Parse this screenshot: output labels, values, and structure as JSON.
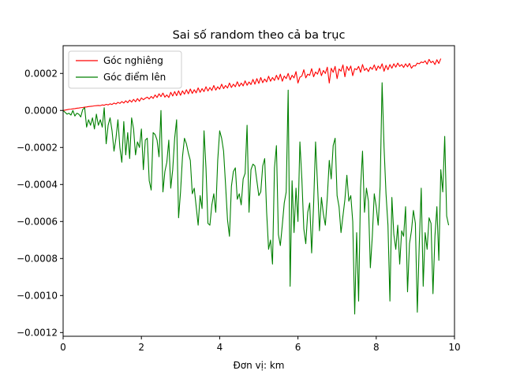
{
  "chart_data": {
    "type": "line",
    "title": "Sai số random theo cả ba trục",
    "xlabel": "Đơn vị: km",
    "ylabel": "",
    "xlim": [
      0,
      10
    ],
    "ylim": [
      -0.00122,
      0.00035
    ],
    "x_ticks": [
      0,
      2,
      4,
      6,
      8,
      10
    ],
    "x_tick_labels": [
      "0",
      "2",
      "4",
      "6",
      "8",
      "10"
    ],
    "y_ticks": [
      0.0002,
      0.0,
      -0.0002,
      -0.0004,
      -0.0006,
      -0.0008,
      -0.001,
      -0.0012
    ],
    "y_tick_labels": [
      "0.0002",
      "0.0000",
      "−0.0002",
      "−0.0004",
      "−0.0006",
      "−0.0008",
      "−0.0010",
      "−0.0012"
    ],
    "grid": false,
    "legend": "upper-left",
    "x_step": 0.05,
    "series": [
      {
        "name": "Góc nghiêng",
        "color": "#ff0000",
        "values": [
          0.0,
          2e-06,
          4e-06,
          6e-06,
          7e-06,
          9e-06,
          1e-05,
          1.2e-05,
          1.3e-05,
          1.5e-05,
          1.6e-05,
          1.8e-05,
          1.9e-05,
          2.1e-05,
          2.2e-05,
          2.3e-05,
          2.5e-05,
          2.6e-05,
          2.7e-05,
          2.6e-05,
          3e-05,
          2.8e-05,
          3.3e-05,
          3e-05,
          3.6e-05,
          3.2e-05,
          4e-05,
          3.5e-05,
          4.4e-05,
          3.8e-05,
          4.8e-05,
          4e-05,
          5.2e-05,
          4.2e-05,
          5.6e-05,
          4.5e-05,
          6e-05,
          4.7e-05,
          6.4e-05,
          5e-05,
          6.8e-05,
          5.8e-05,
          6.6e-05,
          7.2e-05,
          6.2e-05,
          7.6e-05,
          6.5e-05,
          8.4e-05,
          7e-05,
          9e-05,
          7.5e-05,
          9.4e-05,
          7.2e-05,
          8.4e-05,
          7e-05,
          9.8e-05,
          7.8e-05,
          0.000102,
          8e-05,
          0.000106,
          8.2e-05,
          0.000106,
          8.8e-05,
          0.000112,
          9e-05,
          0.000116,
          9.2e-05,
          0.000112,
          9.5e-05,
          0.000122,
          9.8e-05,
          0.000118,
          0.000102,
          0.000128,
          0.000105,
          0.000124,
          0.000108,
          0.000135,
          0.00011,
          0.000128,
          0.000115,
          0.000142,
          0.000118,
          0.000135,
          0.000121,
          0.000148,
          0.000124,
          0.000142,
          0.000128,
          0.000155,
          0.00013,
          0.000148,
          0.000133,
          0.00016,
          0.000136,
          0.000154,
          0.00014,
          0.000168,
          0.000142,
          0.000172,
          0.000146,
          0.000178,
          0.00015,
          0.00017,
          0.000154,
          0.000185,
          0.000158,
          0.000178,
          0.000162,
          0.00019,
          0.000166,
          0.000196,
          0.000158,
          0.000186,
          0.000172,
          0.0002,
          0.000165,
          0.00019,
          0.000176,
          0.00021,
          0.000148,
          0.00018,
          0.000186,
          0.00022,
          0.000176,
          0.000196,
          0.00019,
          0.000226,
          0.000182,
          0.000208,
          0.000196,
          0.000228,
          0.000188,
          0.000216,
          0.0002,
          0.000234,
          0.000148,
          0.000228,
          0.000206,
          0.000238,
          0.000172,
          0.000224,
          0.000212,
          0.000246,
          0.000182,
          0.000238,
          0.000216,
          0.00024,
          0.000188,
          0.000226,
          0.00022,
          0.000238,
          0.000206,
          0.000248,
          0.000216,
          0.000228,
          0.00021,
          0.000234,
          0.000222,
          0.000246,
          0.000216,
          0.00024,
          0.000226,
          0.000252,
          0.000212,
          0.000244,
          0.00022,
          0.000248,
          0.000228,
          0.000252,
          0.000234,
          0.000256,
          0.000238,
          0.000248,
          0.000232,
          0.000252,
          0.000236,
          0.000254,
          0.000228,
          0.000242,
          0.00024,
          0.000256,
          0.000252,
          0.000262,
          0.000258,
          0.000268,
          0.00025,
          0.000276,
          0.000258,
          0.000266,
          0.000248,
          0.000274,
          0.000254,
          0.00028
        ]
      },
      {
        "name": "Góc điểm lên",
        "color": "#008000",
        "values": [
          0.0,
          -1e-05,
          -2e-05,
          -1.5e-05,
          -2.5e-05,
          0.0,
          -3e-05,
          -1.5e-05,
          -2e-05,
          -3.5e-05,
          5e-06,
          1.5e-05,
          -9e-05,
          -5e-05,
          -8e-05,
          -4e-05,
          -0.0001,
          -2e-05,
          -8e-05,
          -5e-05,
          -9e-05,
          1.5e-05,
          -0.00018,
          -8e-05,
          -4e-05,
          -0.00011,
          -0.00022,
          -0.00015,
          -5e-05,
          -0.0002,
          -0.00028,
          -6e-05,
          -0.00024,
          -0.00012,
          -0.00026,
          -4e-05,
          -0.0001,
          -0.00024,
          -0.00017,
          -0.0002,
          -0.0001,
          -0.00032,
          -0.00016,
          -0.00015,
          -0.00038,
          -0.00043,
          -0.00012,
          -0.00013,
          -0.00016,
          -0.00025,
          0.0,
          -0.00044,
          -0.00033,
          -0.00028,
          -0.00016,
          -0.00042,
          -0.00032,
          -0.00015,
          -5e-05,
          -0.00058,
          -0.00044,
          -0.00025,
          -0.00015,
          -0.00018,
          -0.00023,
          -0.00027,
          -0.00045,
          -0.00042,
          -0.00052,
          -0.00062,
          -0.00046,
          -0.00053,
          -0.00011,
          -0.00031,
          -0.00061,
          -0.00062,
          -0.00051,
          -0.00045,
          -0.00055,
          -0.00027,
          -0.00011,
          -0.00015,
          -0.00022,
          -0.0004,
          -0.00059,
          -0.00068,
          -0.00041,
          -0.00033,
          -0.00031,
          -0.00048,
          -0.00045,
          -0.00051,
          -0.00037,
          -0.00034,
          -8e-05,
          -0.00055,
          -0.00032,
          -0.00029,
          -0.0003,
          -0.00038,
          -0.00046,
          -0.00044,
          -0.0003,
          -0.00026,
          -0.00055,
          -0.00075,
          -0.0007,
          -0.00083,
          -0.00031,
          -0.00019,
          -0.00067,
          -0.00073,
          -0.00062,
          -0.0005,
          -0.00044,
          0.00011,
          -0.00095,
          -0.00038,
          -0.00066,
          -0.00042,
          -0.0006,
          -0.00017,
          -0.00037,
          -0.00064,
          -0.00072,
          -0.00055,
          -0.0005,
          -0.00077,
          -0.00051,
          -0.00017,
          -0.0004,
          -0.00065,
          -0.00047,
          -0.00056,
          -0.00062,
          -0.00047,
          -0.00027,
          -0.00037,
          -0.00019,
          -0.00015,
          -0.00046,
          -0.00052,
          -0.00066,
          -0.00057,
          -0.00048,
          -0.00035,
          -0.00049,
          -0.00046,
          -0.0006,
          -0.0011,
          -0.00066,
          -0.00103,
          -0.00042,
          -0.00022,
          -0.00055,
          -0.00042,
          -0.00049,
          -0.00085,
          -0.00068,
          -0.00045,
          -0.00052,
          -0.00062,
          -0.00041,
          0.00015,
          -0.0002,
          -0.00045,
          -0.00062,
          -0.00103,
          -0.00047,
          -0.00067,
          -0.00075,
          -0.00062,
          -0.00083,
          -0.00065,
          -0.00068,
          -0.00052,
          -0.00098,
          -0.00072,
          -0.00065,
          -0.00054,
          -0.00061,
          -0.00109,
          -0.00072,
          -0.00042,
          -0.00095,
          -0.00066,
          -0.00075,
          -0.00058,
          -0.00061,
          -0.00099,
          -0.00068,
          -0.00052,
          -0.00081,
          -0.00032,
          -0.00044,
          -0.00014,
          -0.00057,
          -0.00062
        ]
      }
    ]
  }
}
